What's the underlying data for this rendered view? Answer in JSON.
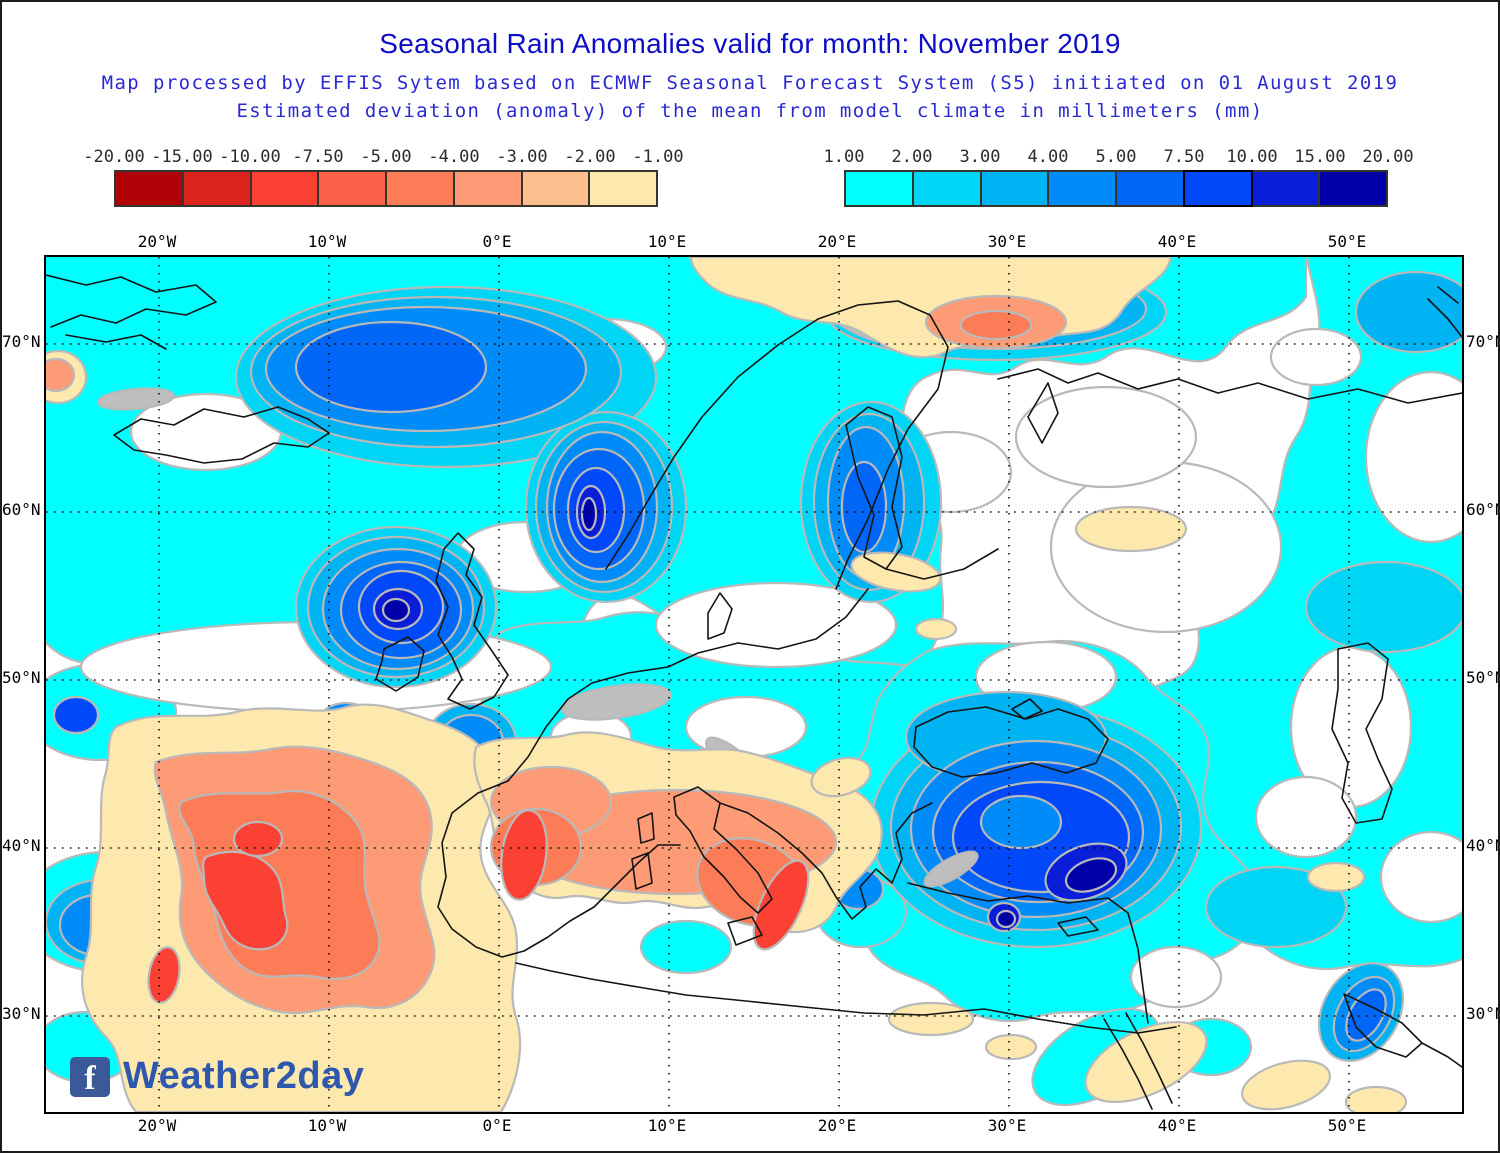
{
  "header": {
    "title": "Seasonal Rain Anomalies valid for month: November 2019",
    "subtitle1": "Map processed by EFFIS Sytem based on ECMWF Seasonal Forecast System (S5) initiated on 01 August 2019",
    "subtitle2": "Estimated deviation (anomaly) of the mean from model climate in millimeters (mm)",
    "title_color": "#0D0DC6",
    "subtitle_color": "#2A2AD2"
  },
  "legend": {
    "units": "mm",
    "negative": {
      "tick_labels": [
        "-20.00",
        "-15.00",
        "-10.00",
        "-7.50",
        "-5.00",
        "-4.00",
        "-3.00",
        "-2.00",
        "-1.00"
      ],
      "cell_colors": [
        "#B00008",
        "#DC231D",
        "#FB4134",
        "#FB6148",
        "#FD7C58",
        "#FD9B76",
        "#FDBE8D",
        "#FDE8AD"
      ]
    },
    "positive": {
      "tick_labels": [
        "1.00",
        "2.00",
        "3.00",
        "4.00",
        "5.00",
        "7.50",
        "10.00",
        "15.00",
        "20.00"
      ],
      "cell_colors": [
        "#00FFFF",
        "#00D5F5",
        "#00B3F2",
        "#008CF8",
        "#0066F8",
        "#0048FA",
        "#0A1ED8",
        "#0000A8"
      ],
      "highlight_cell_index": 5
    }
  },
  "map": {
    "lon_labels": [
      "20°W",
      "10°W",
      "0°E",
      "10°E",
      "20°E",
      "30°E",
      "40°E",
      "50°E"
    ],
    "lat_labels": [
      "70°N",
      "60°N",
      "50°N",
      "40°N",
      "30°N"
    ],
    "watermark": {
      "brand": "Weather2day",
      "facebook_letter": "f",
      "brand_color": "#2E57AE",
      "facebook_color": "#3B5998"
    },
    "colors": {
      "contour_outline": "#B9B9B9",
      "neutral_gray": "#BEBEBE",
      "coastline": "#141414",
      "background": "#FFFFFF"
    }
  },
  "regions_summary": [
    "Strong positive (wet) anomaly over North Atlantic, Norwegian Sea and Scandinavia (up to 10-20 mm)",
    "Deep blue cores west of Scotland/Ireland and along Norwegian coast near 60N",
    "Positive anomaly band over Baltic and Gulf of Bothnia",
    "Strong positive anomaly over Turkey, Black Sea and Anatolia with navy cores (15-20 mm)",
    "Large cyan positive field over eastern Europe/Russia and Caspian surroundings (1-2 mm)",
    "Negative (dry) anomaly over Iberia and NW Africa with red cores (-10 to -15 mm)",
    "Negative anomaly over Tyrrhenian Sea, Corsica and southern Italy",
    "Tan negative band along Arctic coast of Norway/Russia",
    "Scattered weak negative patches over Arabia and north Africa",
    "Neutral white band across mid-Atlantic near 52N and central Russia"
  ]
}
